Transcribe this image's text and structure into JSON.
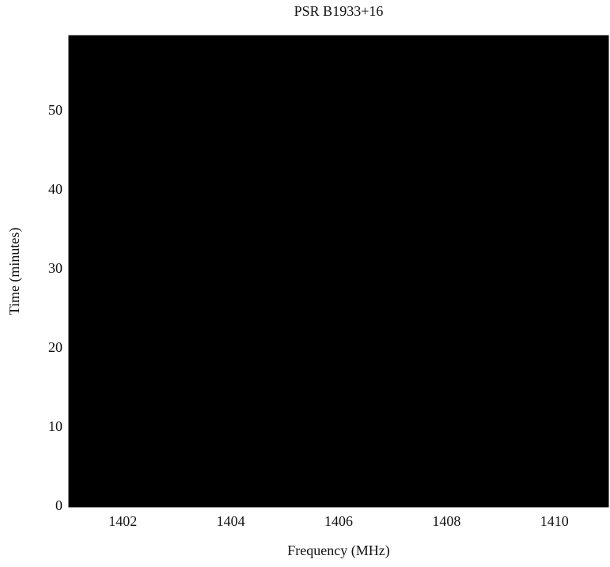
{
  "chart_data": {
    "type": "image",
    "title": "PSR B1933+16",
    "x_label": "Frequency (MHz)",
    "y_label": "Time (minutes)",
    "xlim": [
      1401,
      1411
    ],
    "xticks": [
      1402,
      1404,
      1406,
      1408,
      1410
    ],
    "ylim": [
      0,
      59.6
    ],
    "yticks": [
      0,
      10,
      20,
      30,
      40,
      50
    ],
    "colormap": "gray"
  }
}
